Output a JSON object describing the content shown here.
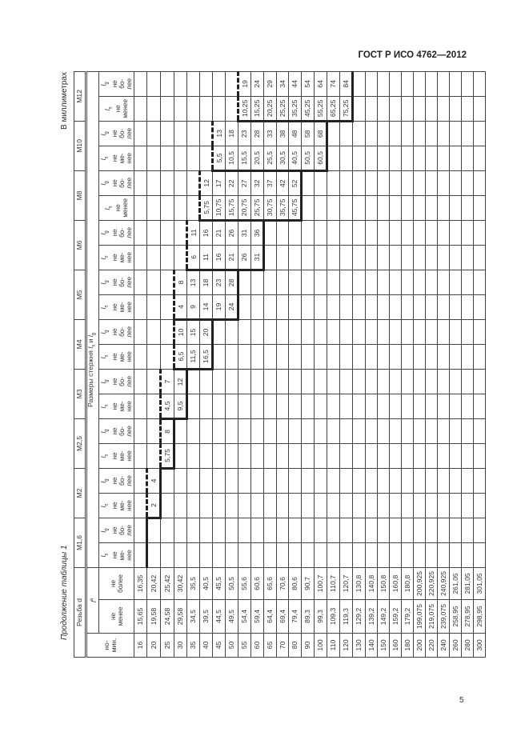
{
  "header": {
    "doc_id": "ГОСТ Р ИСО 4762—2012",
    "page_number": "5"
  },
  "caption": {
    "continuation": "Продолжение таблицы 1",
    "units": "В миллиметрах"
  },
  "table": {
    "thread_label": "Резьба d",
    "l_symbol": "l",
    "l_footnote": "a",
    "shank": {
      "text": "Размеры стержня",
      "sym1": "l",
      "sub1": "s",
      "conj": "и",
      "sym2": "l",
      "sub2": "g"
    },
    "nom_head": "но-\nмин.",
    "min_head": "не\nменее",
    "max_head": "не\nболее",
    "ls_symbol": "l",
    "ls_sub": "s",
    "lg_symbol": "l",
    "lg_sub": "g",
    "lg_text": "не\nбо-\nлее",
    "rows": [
      {
        "nom": "16",
        "min": "15,65",
        "max": "16,35"
      },
      {
        "nom": "20",
        "min": "19,58",
        "max": "20,42"
      },
      {
        "nom": "25",
        "min": "24,58",
        "max": "25,42"
      },
      {
        "nom": "30",
        "min": "29,58",
        "max": "30,42"
      },
      {
        "nom": "35",
        "min": "34,5",
        "max": "35,5"
      },
      {
        "nom": "40",
        "min": "39,5",
        "max": "40,5"
      },
      {
        "nom": "45",
        "min": "44,5",
        "max": "45,5"
      },
      {
        "nom": "50",
        "min": "49,5",
        "max": "50,5"
      },
      {
        "nom": "55",
        "min": "54,4",
        "max": "55,6"
      },
      {
        "nom": "60",
        "min": "59,4",
        "max": "60,6"
      },
      {
        "nom": "65",
        "min": "64,4",
        "max": "65,6"
      },
      {
        "nom": "70",
        "min": "69,4",
        "max": "70,6"
      },
      {
        "nom": "80",
        "min": "79,4",
        "max": "80,6"
      },
      {
        "nom": "90",
        "min": "89,3",
        "max": "90,7"
      },
      {
        "nom": "100",
        "min": "99,3",
        "max": "100,7"
      },
      {
        "nom": "110",
        "min": "109,3",
        "max": "110,7"
      },
      {
        "nom": "120",
        "min": "119,3",
        "max": "120,7"
      },
      {
        "nom": "130",
        "min": "129,2",
        "max": "130,8"
      },
      {
        "nom": "140",
        "min": "139,2",
        "max": "140,8"
      },
      {
        "nom": "150",
        "min": "149,2",
        "max": "150,8"
      },
      {
        "nom": "160",
        "min": "159,2",
        "max": "160,8"
      },
      {
        "nom": "180",
        "min": "179,2",
        "max": "180,8"
      },
      {
        "nom": "200",
        "min": "199,075",
        "max": "200,925"
      },
      {
        "nom": "220",
        "min": "219,075",
        "max": "220,925"
      },
      {
        "nom": "240",
        "min": "239,075",
        "max": "240,925"
      },
      {
        "nom": "260",
        "min": "258,95",
        "max": "261,05"
      },
      {
        "nom": "280",
        "min": "278,95",
        "max": "281,05"
      },
      {
        "nom": "300",
        "min": "298,95",
        "max": "301,05"
      }
    ],
    "sizes": [
      {
        "label": "M1,6",
        "ls_text": "не\nме-\nнее",
        "entries": []
      },
      {
        "label": "M2",
        "ls_text": "не\nме-\nнее",
        "entries": [
          {
            "l": "20",
            "ls": "2",
            "lg": "4"
          }
        ]
      },
      {
        "label": "M2,5",
        "ls_text": "не\nме-\nнее",
        "entries": [
          {
            "l": "25",
            "ls": "5,75",
            "lg": "8"
          }
        ]
      },
      {
        "label": "M3",
        "ls_text": "не\nме-\nнее",
        "entries": [
          {
            "l": "25",
            "ls": "4,5",
            "lg": "7"
          },
          {
            "l": "30",
            "ls": "9,5",
            "lg": "12"
          }
        ]
      },
      {
        "label": "M4",
        "ls_text": "не\nме-\nнее",
        "entries": [
          {
            "l": "30",
            "ls": "6,5",
            "lg": "10"
          },
          {
            "l": "35",
            "ls": "11,5",
            "lg": "15"
          },
          {
            "l": "40",
            "ls": "16,5",
            "lg": "20"
          }
        ]
      },
      {
        "label": "M5",
        "ls_text": "не\nме-\nнее",
        "entries": [
          {
            "l": "30",
            "ls": "4",
            "lg": "8"
          },
          {
            "l": "35",
            "ls": "9",
            "lg": "13"
          },
          {
            "l": "40",
            "ls": "14",
            "lg": "18"
          },
          {
            "l": "45",
            "ls": "19",
            "lg": "23"
          },
          {
            "l": "50",
            "ls": "24",
            "lg": "28"
          }
        ]
      },
      {
        "label": "M6",
        "ls_text": "не\nме-\nнее",
        "entries": [
          {
            "l": "35",
            "ls": "6",
            "lg": "11"
          },
          {
            "l": "40",
            "ls": "11",
            "lg": "16"
          },
          {
            "l": "45",
            "ls": "16",
            "lg": "21"
          },
          {
            "l": "50",
            "ls": "21",
            "lg": "26"
          },
          {
            "l": "55",
            "ls": "26",
            "lg": "31"
          },
          {
            "l": "60",
            "ls": "31",
            "lg": "36"
          }
        ]
      },
      {
        "label": "M8",
        "ls_text": "не\nменее",
        "entries": [
          {
            "l": "40",
            "ls": "5,75",
            "lg": "12"
          },
          {
            "l": "45",
            "ls": "10,75",
            "lg": "17"
          },
          {
            "l": "50",
            "ls": "15,75",
            "lg": "22"
          },
          {
            "l": "55",
            "ls": "20,75",
            "lg": "27"
          },
          {
            "l": "60",
            "ls": "25,75",
            "lg": "32"
          },
          {
            "l": "65",
            "ls": "30,75",
            "lg": "37"
          },
          {
            "l": "70",
            "ls": "35,75",
            "lg": "42"
          },
          {
            "l": "80",
            "ls": "45,75",
            "lg": "52"
          }
        ]
      },
      {
        "label": "M10",
        "ls_text": "не\nме-\nнее",
        "entries": [
          {
            "l": "45",
            "ls": "5,5",
            "lg": "13"
          },
          {
            "l": "50",
            "ls": "10,5",
            "lg": "18"
          },
          {
            "l": "55",
            "ls": "15,5",
            "lg": "23"
          },
          {
            "l": "60",
            "ls": "20,5",
            "lg": "28"
          },
          {
            "l": "65",
            "ls": "25,5",
            "lg": "33"
          },
          {
            "l": "70",
            "ls": "30,5",
            "lg": "38"
          },
          {
            "l": "80",
            "ls": "40,5",
            "lg": "48"
          },
          {
            "l": "90",
            "ls": "50,5",
            "lg": "58"
          },
          {
            "l": "100",
            "ls": "60,5",
            "lg": "68"
          }
        ]
      },
      {
        "label": "M12",
        "ls_text": "не\nменее",
        "entries": [
          {
            "l": "55",
            "ls": "10,25",
            "lg": "19"
          },
          {
            "l": "60",
            "ls": "15,25",
            "lg": "24"
          },
          {
            "l": "65",
            "ls": "20,25",
            "lg": "29"
          },
          {
            "l": "70",
            "ls": "25,25",
            "lg": "34"
          },
          {
            "l": "80",
            "ls": "35,25",
            "lg": "44"
          },
          {
            "l": "90",
            "ls": "45,25",
            "lg": "54"
          },
          {
            "l": "100",
            "ls": "55,25",
            "lg": "64"
          },
          {
            "l": "110",
            "ls": "65,25",
            "lg": "74"
          },
          {
            "l": "120",
            "ls": "75,25",
            "lg": "84"
          }
        ]
      }
    ]
  }
}
